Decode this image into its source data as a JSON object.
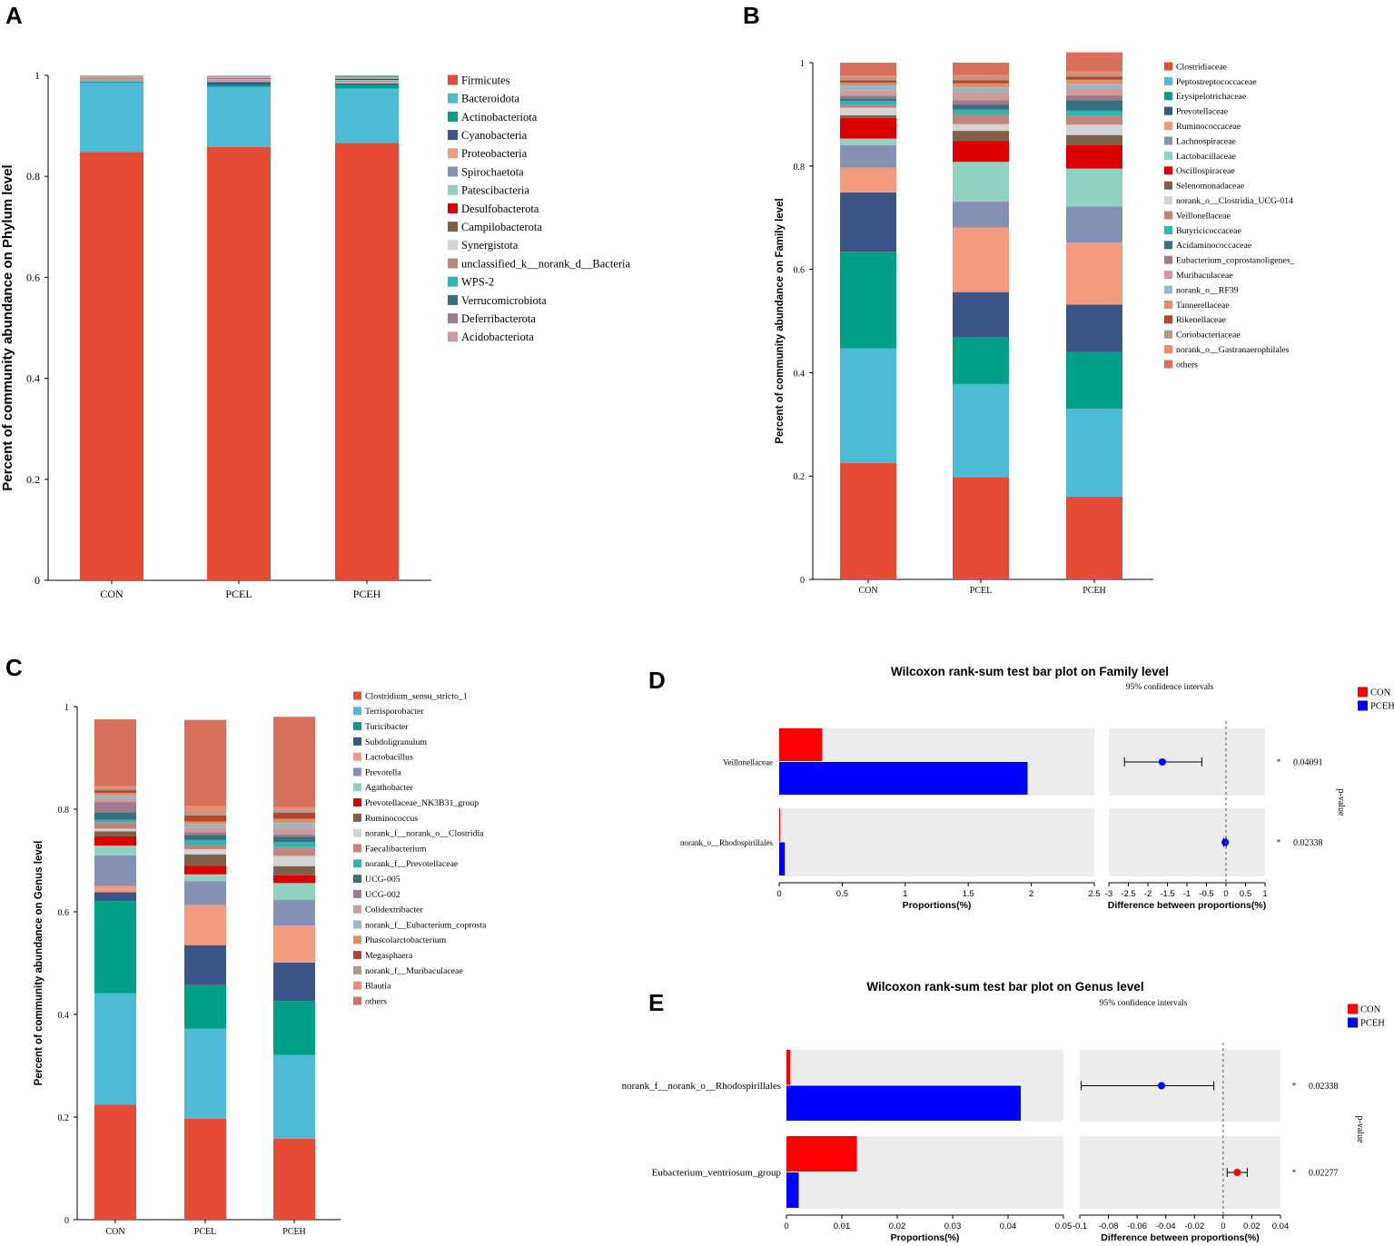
{
  "panels": {
    "A": {
      "label": "A"
    },
    "B": {
      "label": "B"
    },
    "C": {
      "label": "C"
    },
    "D": {
      "label": "D"
    },
    "E": {
      "label": "E"
    }
  },
  "chart_data": [
    {
      "id": "A",
      "type": "bar",
      "stacked": true,
      "categories": [
        "CON",
        "PCEL",
        "PCEH"
      ],
      "ylabel": "Percent of community abundance on Phylum level",
      "ylim": [
        0,
        1
      ],
      "yticks": [
        "0",
        "0.2",
        "0.4",
        "0.6",
        "0.8",
        "1"
      ],
      "series": [
        {
          "name": "Firmicutes",
          "color": "#e64b35",
          "values": [
            0.848,
            0.858,
            0.866
          ]
        },
        {
          "name": "Bacteroidota",
          "color": "#4dbbd5",
          "values": [
            0.137,
            0.119,
            0.108
          ]
        },
        {
          "name": "Actinobacteriota",
          "color": "#00a087",
          "values": [
            0.002,
            0.004,
            0.008
          ]
        },
        {
          "name": "Cyanobacteria",
          "color": "#3c5488",
          "values": [
            0.001,
            0.006,
            0.002
          ]
        },
        {
          "name": "Proteobacteria",
          "color": "#f39b7f",
          "values": [
            0.002,
            0.003,
            0.003
          ]
        },
        {
          "name": "Spirochaetota",
          "color": "#8491b4",
          "values": [
            0.002,
            0.001,
            0.002
          ]
        },
        {
          "name": "Patescibacteria",
          "color": "#91d1c2",
          "values": [
            0.002,
            0.002,
            0.002
          ]
        },
        {
          "name": "Desulfobacterota",
          "color": "#dc0000",
          "values": [
            0.001,
            0.001,
            0.002
          ]
        },
        {
          "name": "Campilobacterota",
          "color": "#7e6148",
          "values": [
            0.001,
            0.001,
            0.001
          ]
        },
        {
          "name": "Synergistota",
          "color": "#d3d3d3",
          "values": [
            0.001,
            0.001,
            0.001
          ]
        },
        {
          "name": "unclassified_k__norank_d__Bacteria",
          "color": "#c0857a",
          "values": [
            0.001,
            0.001,
            0.001
          ]
        },
        {
          "name": "WPS-2",
          "color": "#2fb5b3",
          "values": [
            0.0005,
            0.001,
            0.001
          ]
        },
        {
          "name": "Verrucomicrobiota",
          "color": "#35717f",
          "values": [
            0.0005,
            0.0005,
            0.001
          ]
        },
        {
          "name": "Deferribacterota",
          "color": "#a0798e",
          "values": [
            0.0005,
            0.0005,
            0.001
          ]
        },
        {
          "name": "Acidobacteriota",
          "color": "#cd9a9a",
          "values": [
            0.0005,
            0.0005,
            0.001
          ]
        }
      ]
    },
    {
      "id": "B",
      "type": "bar",
      "stacked": true,
      "categories": [
        "CON",
        "PCEL",
        "PCEH"
      ],
      "ylabel": "Percent of community abundance on Family level",
      "ylim": [
        0,
        1
      ],
      "yticks": [
        "0",
        "0.2",
        "0.4",
        "0.6",
        "0.8",
        "1"
      ],
      "series": [
        {
          "name": "Clostridiaceae",
          "color": "#e64b35",
          "values": [
            0.225,
            0.198,
            0.16
          ]
        },
        {
          "name": "Peptostreptococcaceae",
          "color": "#4dbbd5",
          "values": [
            0.222,
            0.18,
            0.17
          ]
        },
        {
          "name": "Erysipelotrichaceae",
          "color": "#00a087",
          "values": [
            0.187,
            0.09,
            0.11
          ]
        },
        {
          "name": "Prevotellaceae",
          "color": "#3c5488",
          "values": [
            0.115,
            0.088,
            0.092
          ]
        },
        {
          "name": "Ruminococcaceae",
          "color": "#f39b7f",
          "values": [
            0.048,
            0.125,
            0.12
          ]
        },
        {
          "name": "Lachnospiraceae",
          "color": "#8491b4",
          "values": [
            0.043,
            0.05,
            0.07
          ]
        },
        {
          "name": "Lactobacillaceae",
          "color": "#91d1c2",
          "values": [
            0.013,
            0.077,
            0.073
          ]
        },
        {
          "name": "Oscillospiraceae",
          "color": "#dc0000",
          "values": [
            0.04,
            0.04,
            0.045
          ]
        },
        {
          "name": "Selenomonadaceae",
          "color": "#7e6148",
          "values": [
            0.005,
            0.02,
            0.02
          ]
        },
        {
          "name": "norank_o__Clostridia_UCG-014",
          "color": "#d3d3d3",
          "values": [
            0.015,
            0.013,
            0.02
          ]
        },
        {
          "name": "Veillonellaceae",
          "color": "#c0857a",
          "values": [
            0.005,
            0.018,
            0.017
          ]
        },
        {
          "name": "Butyricicoccaceae",
          "color": "#2fb5b3",
          "values": [
            0.008,
            0.01,
            0.01
          ]
        },
        {
          "name": "Acidaminococcaceae",
          "color": "#35717f",
          "values": [
            0.005,
            0.01,
            0.02
          ]
        },
        {
          "name": "Eubacterium_coprostanoligenes_",
          "color": "#a0798e",
          "values": [
            0.005,
            0.008,
            0.01
          ]
        },
        {
          "name": "Muribaculaceae",
          "color": "#cd9a9a",
          "values": [
            0.01,
            0.015,
            0.012
          ]
        },
        {
          "name": "norank_o__RF39",
          "color": "#9ab7c8",
          "values": [
            0.01,
            0.01,
            0.01
          ]
        },
        {
          "name": "Tannerellaceae",
          "color": "#e09060",
          "values": [
            0.005,
            0.008,
            0.008
          ]
        },
        {
          "name": "Rikenellaceae",
          "color": "#b5462e",
          "values": [
            0.005,
            0.006,
            0.006
          ]
        },
        {
          "name": "Coriobacteriaceae",
          "color": "#b09a8b",
          "values": [
            0.005,
            0.005,
            0.005
          ]
        },
        {
          "name": "norank_o__Gastranaerophilales",
          "color": "#ed8b6e",
          "values": [
            0.004,
            0.005,
            0.005
          ]
        },
        {
          "name": "others",
          "color": "#d86f5d",
          "values": [
            0.025,
            0.024,
            0.037
          ]
        }
      ]
    },
    {
      "id": "C",
      "type": "bar",
      "stacked": true,
      "categories": [
        "CON",
        "PCEL",
        "PCEH"
      ],
      "ylabel": "Percent of community abundance on Genus level",
      "ylim": [
        0,
        1
      ],
      "yticks": [
        "0",
        "0.2",
        "0.4",
        "0.6",
        "0.8",
        "1"
      ],
      "series": [
        {
          "name": "Clostridium_sensu_stricto_1",
          "color": "#e64b35",
          "values": [
            0.224,
            0.197,
            0.158
          ]
        },
        {
          "name": "Terrisporobacter",
          "color": "#4dbbd5",
          "values": [
            0.217,
            0.175,
            0.163
          ]
        },
        {
          "name": "Turicibacter",
          "color": "#00a087",
          "values": [
            0.18,
            0.085,
            0.105
          ]
        },
        {
          "name": "Subdoligranulum",
          "color": "#3c5488",
          "values": [
            0.017,
            0.078,
            0.075
          ]
        },
        {
          "name": "Lactobacillus",
          "color": "#f39b7f",
          "values": [
            0.012,
            0.078,
            0.072
          ]
        },
        {
          "name": "Prevotella",
          "color": "#8491b4",
          "values": [
            0.06,
            0.047,
            0.05
          ]
        },
        {
          "name": "Agathobacter",
          "color": "#91d1c2",
          "values": [
            0.019,
            0.013,
            0.033
          ]
        },
        {
          "name": "Prevotellaceae_NK3B31_group",
          "color": "#dc0000",
          "values": [
            0.018,
            0.017,
            0.015
          ]
        },
        {
          "name": "Ruminococcus",
          "color": "#7e6148",
          "values": [
            0.01,
            0.022,
            0.018
          ]
        },
        {
          "name": "norank_f__norank_o__Clostridia",
          "color": "#d3d3d3",
          "values": [
            0.005,
            0.01,
            0.02
          ]
        },
        {
          "name": "Faecalibacterium",
          "color": "#c0857a",
          "values": [
            0.012,
            0.008,
            0.017
          ]
        },
        {
          "name": "norank_f__Prevotellaceae",
          "color": "#2fb5b3",
          "values": [
            0.005,
            0.01,
            0.01
          ]
        },
        {
          "name": "UCG-005",
          "color": "#35717f",
          "values": [
            0.015,
            0.01,
            0.01
          ]
        },
        {
          "name": "UCG-002",
          "color": "#a0798e",
          "values": [
            0.02,
            0.005,
            0.005
          ]
        },
        {
          "name": "Colidextribacter",
          "color": "#cd9a9a",
          "values": [
            0.007,
            0.008,
            0.012
          ]
        },
        {
          "name": "norank_f__Eubacterium_coprosta",
          "color": "#9ab7c8",
          "values": [
            0.006,
            0.008,
            0.01
          ]
        },
        {
          "name": "Phascolarctobacterium",
          "color": "#e09060",
          "values": [
            0.005,
            0.005,
            0.008
          ]
        },
        {
          "name": "Megasphaera",
          "color": "#b5462e",
          "values": [
            0.005,
            0.012,
            0.012
          ]
        },
        {
          "name": "norank_f__Muribaculaceae",
          "color": "#b09a8b",
          "values": [
            0.005,
            0.008,
            0.005
          ]
        },
        {
          "name": "Blautia",
          "color": "#ed8b6e",
          "values": [
            0.003,
            0.01,
            0.006
          ]
        },
        {
          "name": "others",
          "color": "#d86f5d",
          "values": [
            0.13,
            0.168,
            0.176
          ]
        }
      ]
    },
    {
      "id": "D",
      "type": "bar",
      "orientation": "horizontal",
      "title": "Wilcoxon rank-sum test bar plot on Family level",
      "ci_label": "95% confidence intervals",
      "legend": [
        {
          "name": "CON",
          "color": "#ff0000"
        },
        {
          "name": "PCEH",
          "color": "#0000ff"
        }
      ],
      "categories": [
        "Veillonellaceae",
        "norank_o__Rhodospirillales"
      ],
      "series": [
        {
          "name": "CON",
          "color": "#ff0000",
          "values": [
            0.34,
            0.005
          ]
        },
        {
          "name": "PCEH",
          "color": "#0000ff",
          "values": [
            1.97,
            0.045
          ]
        }
      ],
      "xlabel": "Proportions(%)",
      "xlim": [
        0,
        2.5
      ],
      "xticks": [
        "0",
        "0.5",
        "1",
        "1.5",
        "2",
        "2.5"
      ],
      "diff": {
        "xlabel": "Difference between proportions(%)",
        "xlim": [
          -3,
          1
        ],
        "xticks": [
          "-3",
          "-2.5",
          "-2",
          "-1.5",
          "-1",
          "-0.5",
          "0",
          "0.5",
          "1"
        ],
        "estimates": [
          -1.63,
          -0.02
        ],
        "ci_low": [
          -2.6,
          -0.06
        ],
        "ci_high": [
          -0.62,
          0.01
        ],
        "colors": [
          "#0000ff",
          "#0000ff"
        ]
      },
      "pvalues": [
        "0.04091",
        "0.02338"
      ],
      "star": "*",
      "pvalue_label": "p-value"
    },
    {
      "id": "E",
      "type": "bar",
      "orientation": "horizontal",
      "title": "Wilcoxon rank-sum test bar plot on Genus level",
      "ci_label": "95% confidence intervals",
      "legend": [
        {
          "name": "CON",
          "color": "#ff0000"
        },
        {
          "name": "PCEH",
          "color": "#0000ff"
        }
      ],
      "categories": [
        "norank_f__norank_o__Rhodospirillales",
        "Eubacterium_ventriosum_group"
      ],
      "series": [
        {
          "name": "CON",
          "color": "#ff0000",
          "values": [
            0.0007,
            0.0127
          ]
        },
        {
          "name": "PCEH",
          "color": "#0000ff",
          "values": [
            0.0423,
            0.0022
          ]
        }
      ],
      "xlabel": "Proportions(%)",
      "xlim": [
        0,
        0.05
      ],
      "xticks": [
        "0",
        "0.01",
        "0.02",
        "0.03",
        "0.04",
        "0.05"
      ],
      "diff": {
        "xlabel": "Difference between proportions(%)",
        "xlim": [
          -0.1,
          0.04
        ],
        "xticks": [
          "-0.1",
          "-0.08",
          "-0.06",
          "-0.04",
          "-0.02",
          "0",
          "0.02",
          "0.04"
        ],
        "estimates": [
          -0.043,
          0.0098
        ],
        "ci_low": [
          -0.099,
          0.0028
        ],
        "ci_high": [
          -0.0065,
          0.0168
        ],
        "colors": [
          "#0000ff",
          "#ff0000"
        ]
      },
      "pvalues": [
        "0.02338",
        "0.02277"
      ],
      "star": "*",
      "pvalue_label": "p-value"
    }
  ]
}
